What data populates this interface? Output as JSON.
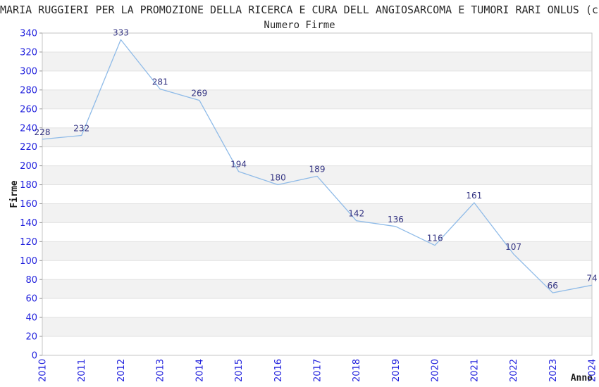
{
  "chart_data": {
    "type": "line",
    "title": "MARIA RUGGIERI PER LA PROMOZIONE DELLA RICERCA E CURA DELL ANGIOSARCOMA E TUMORI RARI ONLUS (c.",
    "subtitle": "Numero Firme",
    "xlabel": "Anno",
    "ylabel": "Firme",
    "categories": [
      "2010",
      "2011",
      "2012",
      "2013",
      "2014",
      "2015",
      "2016",
      "2017",
      "2018",
      "2019",
      "2020",
      "2021",
      "2022",
      "2023",
      "2024"
    ],
    "values": [
      228,
      232,
      333,
      281,
      269,
      194,
      180,
      189,
      142,
      136,
      116,
      161,
      107,
      66,
      74
    ],
    "ylim": [
      0,
      340
    ],
    "yticks": [
      0,
      20,
      40,
      60,
      80,
      100,
      120,
      140,
      160,
      180,
      200,
      220,
      240,
      260,
      280,
      300,
      320,
      340
    ],
    "grid": "horizontal-alternating-bands",
    "legend": "none",
    "point_markers": "none",
    "colors": {
      "line": "#8fbbe8",
      "point_label": "#333382",
      "tick_label": "#2222dd",
      "axis_label": "#1a1a1a",
      "title": "#2b2b2b",
      "band_fill": "#f2f2f2",
      "band_edge": "#e2e2e2",
      "plot_border": "#c6c6c6",
      "tick_mark": "#999999",
      "background": "#ffffff"
    }
  }
}
